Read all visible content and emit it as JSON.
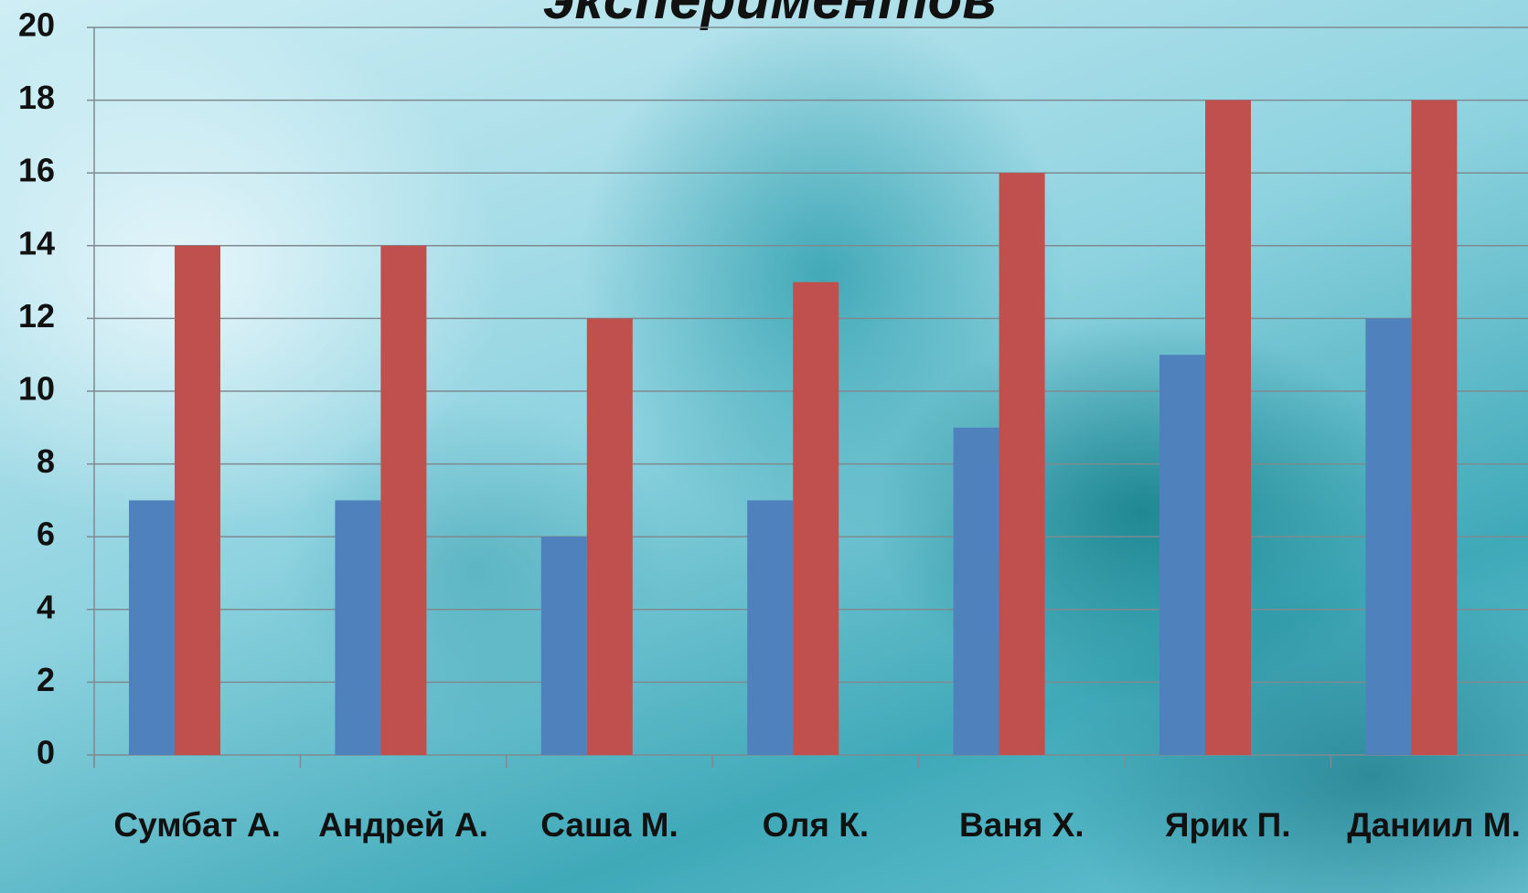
{
  "chart_data": {
    "type": "bar",
    "title": "экспериментов",
    "categories": [
      "Сумбат А.",
      "Андрей А.",
      "Саша М.",
      "Оля К.",
      "Ваня Х.",
      "Ярик П.",
      "Даниил М."
    ],
    "series": [
      {
        "color": "#4f81bd",
        "values": [
          7,
          7,
          6,
          7,
          9,
          11,
          12
        ]
      },
      {
        "color": "#c0504d",
        "values": [
          14,
          14,
          12,
          13,
          16,
          18,
          18
        ]
      }
    ],
    "ylim": [
      0,
      20
    ],
    "yticks": [
      0,
      2,
      4,
      6,
      8,
      10,
      12,
      14,
      16,
      18,
      20
    ],
    "grid": true
  }
}
